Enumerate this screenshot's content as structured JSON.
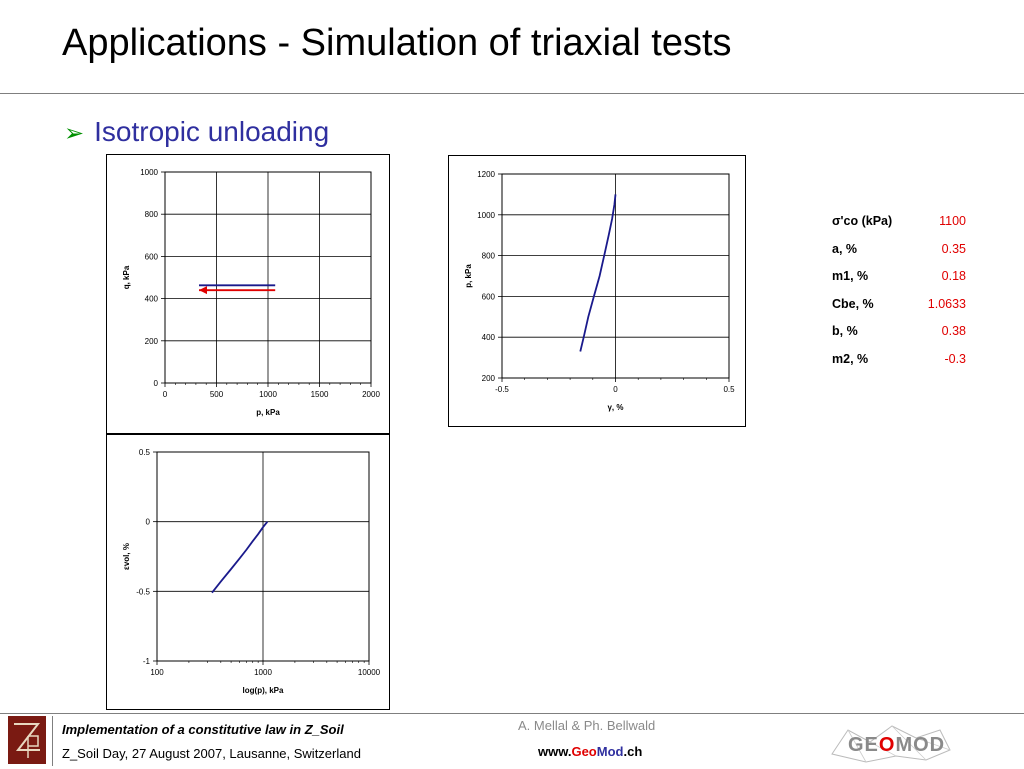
{
  "slide": {
    "title": "Applications - Simulation of triaxial tests",
    "bullet": "Isotropic unloading"
  },
  "params": [
    {
      "name": "σ'co (kPa)",
      "value": "1100"
    },
    {
      "name": "a, %",
      "value": "0.35"
    },
    {
      "name": "m1, %",
      "value": "0.18"
    },
    {
      "name": "Cbe, %",
      "value": "1.0633"
    },
    {
      "name": "b, %",
      "value": "0.38"
    },
    {
      "name": "m2, %",
      "value": "-0.3"
    }
  ],
  "footer": {
    "line1": "Implementation of a constitutive law in Z_Soil",
    "line2": "Z_Soil Day, 27 August 2007, Lausanne, Switzerland",
    "authors": "A. Mellal & Ph. Bellwald",
    "url_prefix": "www.",
    "url_geo": "Geo",
    "url_mod": "Mod",
    "url_suffix": ".ch",
    "logo_geo": "GE",
    "logo_o": "O",
    "logo_mod": "MOD"
  },
  "chart_data": [
    {
      "type": "line",
      "xlabel": "p, kPa",
      "ylabel": "q, kPa",
      "xlim": [
        0,
        2000
      ],
      "ylim": [
        0,
        1000
      ],
      "xticks": [
        "0",
        "500",
        "1000",
        "1500",
        "2000"
      ],
      "yticks": [
        "0",
        "200",
        "400",
        "600",
        "800",
        "1000"
      ],
      "grid": true,
      "series": [
        {
          "color": "#1a1a8c",
          "x": [
            330,
            1070
          ],
          "y": [
            463,
            463
          ]
        },
        {
          "color": "#e00000",
          "x": [
            1070,
            330
          ],
          "y": [
            440,
            440
          ],
          "arrow": true
        }
      ]
    },
    {
      "type": "line",
      "xlabel": "γ, %",
      "ylabel": "p, kPa",
      "xlim": [
        -0.5,
        0.5
      ],
      "ylim": [
        200,
        1200
      ],
      "xticks": [
        "-0.5",
        "0",
        "0.5"
      ],
      "yticks": [
        "200",
        "400",
        "600",
        "800",
        "1000",
        "1200"
      ],
      "grid": true,
      "series": [
        {
          "color": "#1a1a8c",
          "x": [
            -0.155,
            -0.14,
            -0.12,
            -0.095,
            -0.07,
            -0.05,
            -0.03,
            -0.015,
            -0.005,
            0
          ],
          "y": [
            330,
            400,
            500,
            600,
            700,
            800,
            900,
            980,
            1050,
            1100
          ]
        }
      ]
    },
    {
      "type": "line",
      "xlabel": "log(p), kPa",
      "ylabel": "εvol, %",
      "xscale": "log",
      "xlim": [
        100,
        10000
      ],
      "ylim": [
        -1,
        0.5
      ],
      "xticks": [
        "100",
        "1000",
        "10000"
      ],
      "yticks": [
        "-1",
        "-0.5",
        "0",
        "0.5"
      ],
      "grid": true,
      "series": [
        {
          "color": "#1a1a8c",
          "x": [
            330,
            400,
            500,
            600,
            700,
            800,
            900,
            1000,
            1100
          ],
          "y": [
            -0.51,
            -0.43,
            -0.34,
            -0.265,
            -0.2,
            -0.14,
            -0.09,
            -0.04,
            0
          ]
        }
      ]
    }
  ]
}
